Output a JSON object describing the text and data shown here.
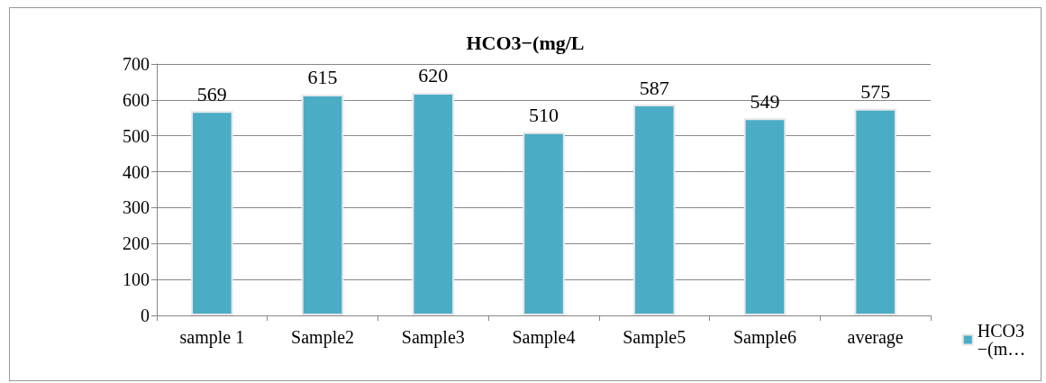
{
  "chart_data": {
    "type": "bar",
    "title": "HCO3−(mg/L",
    "categories": [
      "sample 1",
      "Sample2",
      "Sample3",
      "Sample4",
      "Sample5",
      "Sample6",
      "average"
    ],
    "series": [
      {
        "name": "HCO3 −(m…",
        "color": "#4bacc6",
        "values": [
          569,
          615,
          620,
          510,
          587,
          549,
          575
        ]
      }
    ],
    "ylim": [
      0,
      700
    ],
    "yticks": [
      0,
      100,
      200,
      300,
      400,
      500,
      600,
      700
    ],
    "grid": "y",
    "legend": "bottom right",
    "data_labels": true
  }
}
